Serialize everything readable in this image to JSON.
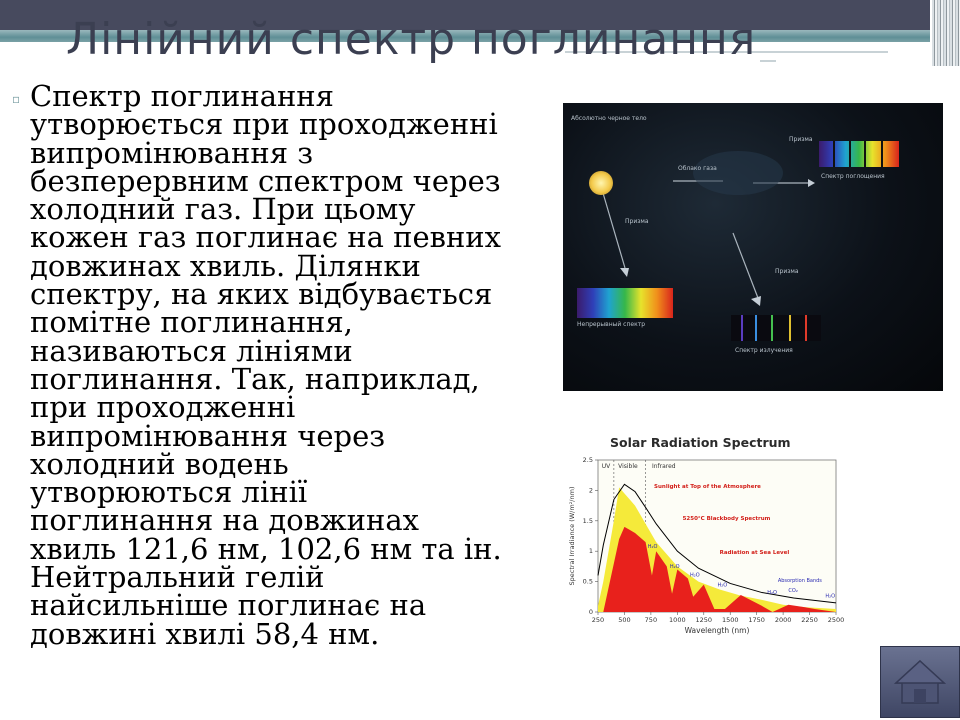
{
  "slide": {
    "title": "Лінійний спектр поглинання",
    "bullet_glyph": "▫",
    "body_lines": [
      "Спектр поглинання",
      "утворюється при проходженні",
      "випромінювання з",
      "безперервним спектром через",
      "холодний газ. При цьому",
      "кожен газ поглинає на певних",
      "довжинах хвиль. Ділянки",
      "спектру, на яких відбувається",
      "помітне поглинання,",
      "називаються лініями",
      "поглинання. Так, наприклад,",
      "при проходженні",
      "випромінювання через",
      "холодний водень",
      "утворюються лінії",
      "поглинання на довжинах",
      "хвиль 121,6 нм, 102,6 нм та ін.",
      "Нейтральний гелій",
      "найсильніше поглинає на",
      "довжині хвилі 58,4 нм."
    ]
  },
  "photo": {
    "labels": {
      "blackbody": "Абсолютно черное тело",
      "gas_cloud": "Облако газа",
      "prism_top": "Призма",
      "prism_left": "Призма",
      "prism_bottom": "Призма",
      "absorption_spectrum": "Спектр поглощения",
      "continuous_spectrum": "Непрерывный спектр",
      "emission_spectrum": "Спектр излучения"
    }
  },
  "solar_chart": {
    "title": "Solar Radiation Spectrum",
    "ylabel": "Spectral Irradiance (W/m²/nm)",
    "xlabel": "Wavelength (nm)",
    "y_ticks": [
      "0",
      "0.5",
      "1",
      "1.5",
      "2",
      "2.5"
    ],
    "x_ticks": [
      "250",
      "500",
      "750",
      "1000",
      "1250",
      "1500",
      "1750",
      "2000",
      "2250",
      "2500"
    ],
    "bands": [
      "UV",
      "Visible",
      "Infrared"
    ],
    "legend": {
      "top_atmosphere": "Sunlight at Top of the Atmosphere",
      "blackbody": "5250°C Blackbody Spectrum",
      "sea_level": "Radiation at Sea Level",
      "absorption": "Absorption Bands"
    },
    "molecules": [
      "H₂O",
      "H₂O",
      "H₂O",
      "H₂O",
      "H₂O",
      "CO₂",
      "H₂O"
    ],
    "colors": {
      "top": "#f5ea3a",
      "sea": "#e8211c",
      "curve": "#000000",
      "absorption_text": "#2a2ab0"
    }
  },
  "chart_data": {
    "type": "area",
    "title": "Solar Radiation Spectrum",
    "xlabel": "Wavelength (nm)",
    "ylabel": "Spectral Irradiance (W/m²/nm)",
    "xlim": [
      250,
      2500
    ],
    "ylim": [
      0,
      2.5
    ],
    "series": [
      {
        "name": "Sunlight at Top of the Atmosphere",
        "x": [
          250,
          300,
          350,
          400,
          450,
          500,
          550,
          600,
          700,
          800,
          900,
          1000,
          1200,
          1400,
          1600,
          1800,
          2000,
          2200,
          2500
        ],
        "values": [
          0.1,
          0.5,
          1.0,
          1.5,
          2.05,
          1.95,
          1.85,
          1.75,
          1.45,
          1.15,
          0.95,
          0.75,
          0.5,
          0.37,
          0.27,
          0.2,
          0.12,
          0.08,
          0.05
        ]
      },
      {
        "name": "5250°C Blackbody Spectrum",
        "x": [
          250,
          300,
          400,
          500,
          600,
          700,
          800,
          1000,
          1200,
          1500,
          1800,
          2100,
          2500
        ],
        "values": [
          0.6,
          1.1,
          1.85,
          2.1,
          1.98,
          1.72,
          1.45,
          1.0,
          0.72,
          0.47,
          0.32,
          0.23,
          0.15
        ]
      },
      {
        "name": "Radiation at Sea Level",
        "x": [
          300,
          350,
          400,
          450,
          500,
          550,
          600,
          700,
          760,
          800,
          900,
          950,
          1000,
          1100,
          1150,
          1250,
          1350,
          1450,
          1600,
          1800,
          1900,
          2050,
          2200,
          2300,
          2500
        ],
        "values": [
          0.0,
          0.4,
          0.8,
          1.2,
          1.4,
          1.35,
          1.3,
          1.15,
          0.6,
          1.0,
          0.75,
          0.3,
          0.7,
          0.55,
          0.25,
          0.45,
          0.05,
          0.05,
          0.28,
          0.1,
          0.0,
          0.12,
          0.08,
          0.05,
          0.0
        ]
      }
    ]
  }
}
